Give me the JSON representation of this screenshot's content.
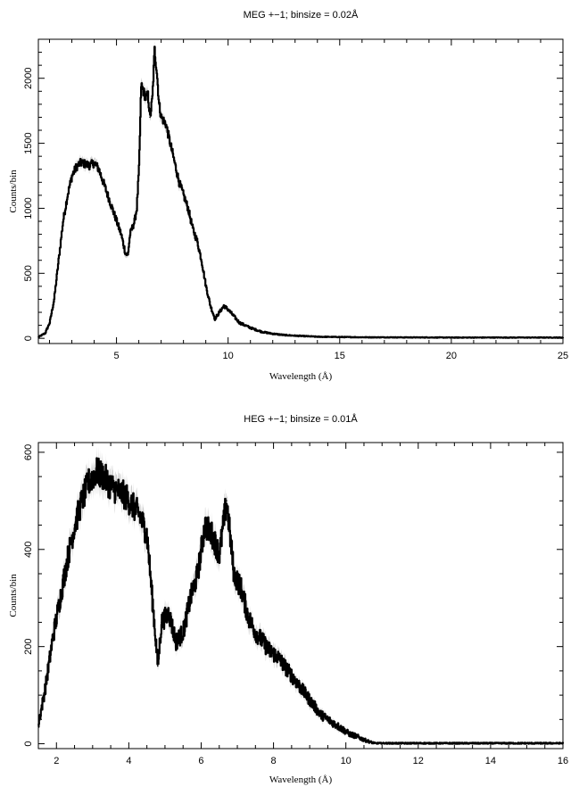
{
  "chart_data": [
    {
      "type": "line",
      "title": "MEG +−1; binsize = 0.02Å",
      "xlabel": "Wavelength (Å)",
      "ylabel": "Counts/bin",
      "xlim": [
        1.5,
        25
      ],
      "ylim": [
        -40,
        2300
      ],
      "xticks_major": [
        5,
        10,
        15,
        20,
        25
      ],
      "yticks_major": [
        0,
        500,
        1000,
        1500,
        2000
      ],
      "grid": false,
      "series": [
        {
          "x": [
            1.5,
            1.8,
            2.0,
            2.2,
            2.4,
            2.6,
            2.8,
            3.0,
            3.2,
            3.4,
            3.6,
            3.8,
            4.0,
            4.2,
            4.4,
            4.6,
            4.8,
            5.0,
            5.2,
            5.4,
            5.5,
            5.6,
            5.8,
            5.9,
            6.0,
            6.1,
            6.2,
            6.3,
            6.4,
            6.5,
            6.6,
            6.7,
            6.8,
            6.9,
            7.0,
            7.2,
            7.4,
            7.6,
            7.8,
            8.0,
            8.2,
            8.4,
            8.6,
            8.8,
            9.0,
            9.2,
            9.4,
            9.6,
            9.8,
            10.0,
            10.2,
            10.5,
            11.0,
            11.5,
            12.0,
            12.5,
            13.0,
            14.0,
            15.0,
            16.0,
            18.0,
            20.0,
            22.0,
            25.0
          ],
          "y": [
            10,
            40,
            120,
            300,
            600,
            900,
            1100,
            1250,
            1320,
            1350,
            1340,
            1330,
            1350,
            1300,
            1200,
            1100,
            1000,
            900,
            800,
            650,
            640,
            800,
            900,
            1000,
            1300,
            1950,
            1900,
            1850,
            1870,
            1700,
            1850,
            2220,
            2050,
            1800,
            1700,
            1650,
            1500,
            1350,
            1200,
            1100,
            1000,
            850,
            750,
            600,
            400,
            250,
            150,
            200,
            250,
            220,
            180,
            120,
            80,
            50,
            35,
            25,
            20,
            12,
            10,
            8,
            7,
            6,
            6,
            6
          ]
        }
      ]
    },
    {
      "type": "line",
      "title": "HEG +−1; binsize = 0.01Å",
      "xlabel": "Wavelength (Å)",
      "ylabel": "Counts/bin",
      "xlim": [
        1.5,
        16
      ],
      "ylim": [
        -10,
        620
      ],
      "xticks_major": [
        2,
        4,
        6,
        8,
        10,
        12,
        14,
        16
      ],
      "yticks_major": [
        0,
        200,
        400,
        600
      ],
      "grid": false,
      "series": [
        {
          "x": [
            1.5,
            1.7,
            1.9,
            2.1,
            2.3,
            2.5,
            2.7,
            2.9,
            3.1,
            3.3,
            3.5,
            3.7,
            3.9,
            4.1,
            4.3,
            4.5,
            4.7,
            4.8,
            4.9,
            5.1,
            5.3,
            5.5,
            5.7,
            5.9,
            6.1,
            6.3,
            6.5,
            6.7,
            6.9,
            7.1,
            7.3,
            7.5,
            7.7,
            7.9,
            8.1,
            8.3,
            8.5,
            8.7,
            8.9,
            9.1,
            9.3,
            9.5,
            9.7,
            9.9,
            10.1,
            10.3,
            10.5,
            10.7,
            10.8,
            11.0,
            12.0,
            13.0,
            14.0,
            15.0,
            16.0
          ],
          "y": [
            40,
            120,
            220,
            300,
            380,
            450,
            500,
            540,
            560,
            550,
            530,
            520,
            510,
            490,
            470,
            430,
            250,
            160,
            250,
            270,
            210,
            230,
            300,
            350,
            450,
            430,
            390,
            500,
            350,
            320,
            260,
            230,
            210,
            190,
            180,
            160,
            140,
            120,
            100,
            80,
            60,
            50,
            40,
            30,
            20,
            15,
            8,
            3,
            1,
            1,
            1,
            1,
            1,
            1,
            1
          ]
        }
      ]
    }
  ]
}
